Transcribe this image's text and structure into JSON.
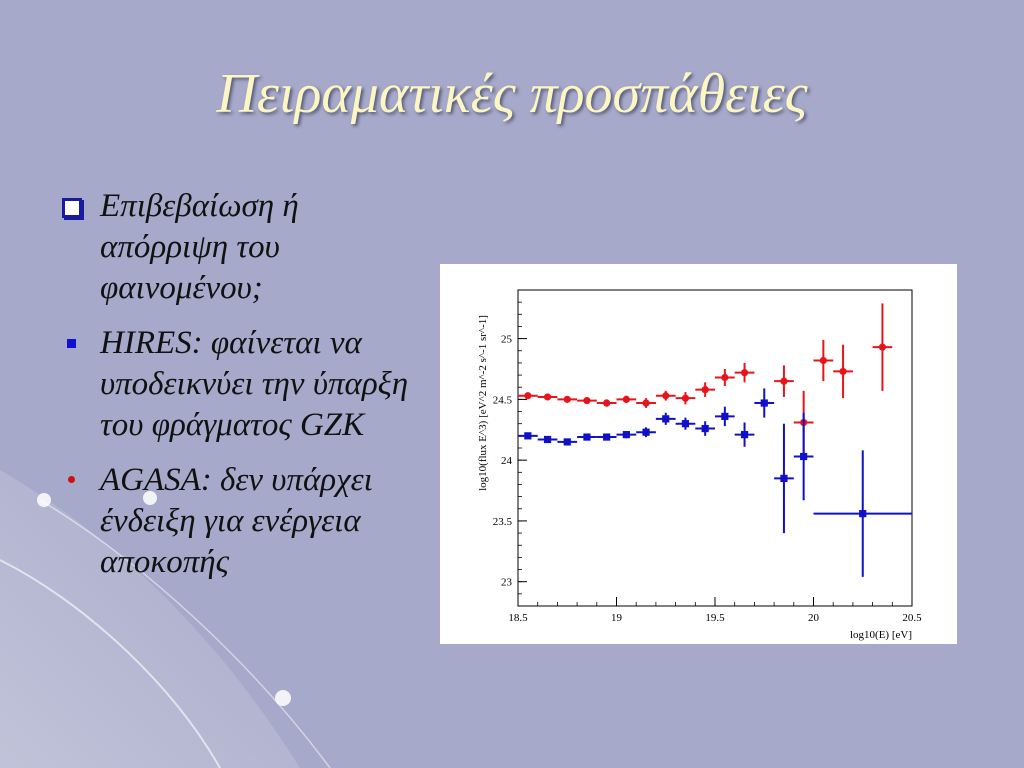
{
  "slide": {
    "title": "Πειραματικές προσπάθειες",
    "bullets": [
      {
        "marker": "box",
        "text": "Επιβεβαίωση ή απόρριψη του φαινομένου;"
      },
      {
        "marker": "square",
        "text": "HIRES: φαίνεται να υποδεικνύει την ύπαρξη του φράγματος GZK"
      },
      {
        "marker": "dot",
        "text": "AGASA: δεν υπάρχει ένδειξη για ενέργεια αποκοπής"
      }
    ]
  },
  "chart_data": {
    "type": "scatter",
    "xlabel": "log10(E) [eV]",
    "ylabel": "log10(flux E^3) [eV^2 m^-2 s^-1 sr^-1]",
    "xlim": [
      18.5,
      20.5
    ],
    "ylim": [
      22.8,
      25.4
    ],
    "xticks": [
      "18.5",
      "19",
      "19.5",
      "20",
      "20.5"
    ],
    "yticks": [
      "23",
      "23.5",
      "24",
      "24.5",
      "25"
    ],
    "series": [
      {
        "color": "#e8141b",
        "marker": "circle",
        "points": [
          {
            "x": 18.55,
            "y": 24.53,
            "err": 0.02
          },
          {
            "x": 18.65,
            "y": 24.52,
            "err": 0.02
          },
          {
            "x": 18.75,
            "y": 24.5,
            "err": 0.02
          },
          {
            "x": 18.85,
            "y": 24.49,
            "err": 0.02
          },
          {
            "x": 18.95,
            "y": 24.47,
            "err": 0.03
          },
          {
            "x": 19.05,
            "y": 24.5,
            "err": 0.03
          },
          {
            "x": 19.15,
            "y": 24.47,
            "err": 0.04
          },
          {
            "x": 19.25,
            "y": 24.53,
            "err": 0.04
          },
          {
            "x": 19.35,
            "y": 24.51,
            "err": 0.05
          },
          {
            "x": 19.45,
            "y": 24.58,
            "err": 0.06
          },
          {
            "x": 19.55,
            "y": 24.68,
            "err": 0.07
          },
          {
            "x": 19.65,
            "y": 24.72,
            "err": 0.08
          },
          {
            "x": 19.85,
            "y": 24.65,
            "err": 0.13
          },
          {
            "x": 19.95,
            "y": 24.31,
            "err": 0.26
          },
          {
            "x": 20.05,
            "y": 24.82,
            "err": 0.17
          },
          {
            "x": 20.15,
            "y": 24.73,
            "err": 0.22
          },
          {
            "x": 20.35,
            "y": 24.93,
            "err": 0.36
          }
        ]
      },
      {
        "color": "#1010c8",
        "marker": "square",
        "points": [
          {
            "x": 18.55,
            "y": 24.2,
            "err": 0.02
          },
          {
            "x": 18.65,
            "y": 24.17,
            "err": 0.02
          },
          {
            "x": 18.75,
            "y": 24.15,
            "err": 0.02
          },
          {
            "x": 18.85,
            "y": 24.19,
            "err": 0.02
          },
          {
            "x": 18.95,
            "y": 24.19,
            "err": 0.02
          },
          {
            "x": 19.05,
            "y": 24.21,
            "err": 0.03
          },
          {
            "x": 19.15,
            "y": 24.23,
            "err": 0.04
          },
          {
            "x": 19.25,
            "y": 24.34,
            "err": 0.05
          },
          {
            "x": 19.35,
            "y": 24.3,
            "err": 0.05
          },
          {
            "x": 19.45,
            "y": 24.26,
            "err": 0.06
          },
          {
            "x": 19.55,
            "y": 24.36,
            "err": 0.08
          },
          {
            "x": 19.65,
            "y": 24.21,
            "err": 0.1
          },
          {
            "x": 19.75,
            "y": 24.47,
            "err": 0.12
          },
          {
            "x": 19.85,
            "y": 23.85,
            "err": 0.45
          },
          {
            "x": 19.95,
            "y": 24.03,
            "err": 0.36
          },
          {
            "x": 20.25,
            "y": 23.56,
            "err": 0.52
          }
        ]
      }
    ]
  }
}
